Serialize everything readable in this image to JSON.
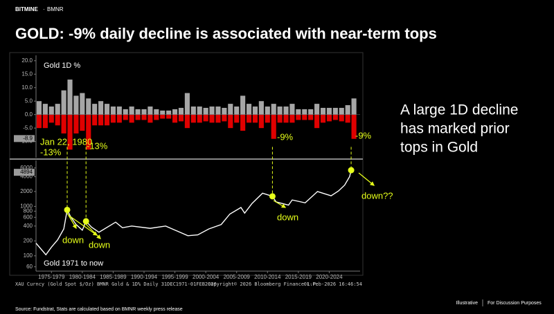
{
  "header": {
    "brand": "BITMINE",
    "ticker": "BMNR"
  },
  "title": "GOLD: -9% daily decline is associated with near-term tops",
  "callout": [
    "A large 1D decline",
    "has marked prior",
    "tops in Gold"
  ],
  "annotations": [
    "Jan 22, 1980",
    "-13%",
    "-13%",
    "-9%",
    "-9%",
    "down",
    "down",
    "down",
    "down??"
  ],
  "footer": {
    "chart_info": "XAU Curncy (Gold Spot $/Oz) BMNR Gold & 1D% Daily 31DEC1971-01FEB2026",
    "copyright": "Copyright© 2026 Bloomberg Finance L.P.",
    "timestamp": "01-Feb-2026 16:46:54",
    "source": "Source: Fundstrat, Stats are calculated based on BMNR weekly press release",
    "note_left": "Illustrative",
    "note_right": "For Discussion Purposes"
  },
  "chart_data": [
    {
      "type": "bar",
      "title": "Gold 1D %",
      "x": [
        1975,
        1976,
        1977,
        1978,
        1979,
        1980,
        1981,
        1982,
        1983,
        1984,
        1985,
        1986,
        1987,
        1988,
        1989,
        1990,
        1991,
        1992,
        1993,
        1994,
        1995,
        1996,
        1997,
        1998,
        1999,
        2000,
        2001,
        2002,
        2003,
        2004,
        2005,
        2006,
        2007,
        2008,
        2009,
        2010,
        2011,
        2012,
        2013,
        2014,
        2015,
        2016,
        2017,
        2018,
        2019,
        2020,
        2021,
        2022,
        2023,
        2024,
        2025,
        2026
      ],
      "series": [
        {
          "color": "#a6a6a6",
          "values": [
            5,
            4,
            3,
            4,
            9,
            13,
            7,
            8,
            6,
            4,
            5,
            4,
            3,
            3,
            2,
            3,
            2,
            2,
            3,
            2,
            1.5,
            1.5,
            2,
            2.5,
            8,
            3,
            3,
            2.5,
            3,
            3,
            2.5,
            4,
            3,
            7,
            4,
            3,
            5,
            3,
            4,
            3,
            3,
            4,
            2,
            2,
            2,
            4,
            2.5,
            2.5,
            2.5,
            2.5,
            3.5,
            6
          ]
        },
        {
          "color": "#e00000",
          "values": [
            -5,
            -5,
            -3,
            -4,
            -7,
            -13,
            -7,
            -6,
            -13,
            -4,
            -4,
            -4,
            -3,
            -3,
            -2,
            -3,
            -2,
            -2,
            -3,
            -2,
            -1.5,
            -1.5,
            -3,
            -2.5,
            -5,
            -3,
            -3,
            -2.5,
            -3,
            -3,
            -2.5,
            -5,
            -3,
            -6,
            -3,
            -3,
            -5,
            -3,
            -9,
            -3,
            -3,
            -3,
            -2,
            -2,
            -2,
            -5,
            -3,
            -2.5,
            -2,
            -2.5,
            -3,
            -9
          ]
        }
      ],
      "xlim": [
        1975,
        2027.5
      ],
      "ylim": [
        -16,
        22
      ],
      "yticks": [
        {
          "value": 20,
          "label": "20.0"
        },
        {
          "value": 15,
          "label": "15.0"
        },
        {
          "value": 10,
          "label": "10.0"
        },
        {
          "value": 5,
          "label": "5.0"
        },
        {
          "value": 0,
          "label": "0.0"
        },
        {
          "value": -5,
          "label": "-5.0"
        },
        {
          "value": -10,
          "label": "-10.0"
        }
      ],
      "last_value": -8.9
    },
    {
      "type": "line",
      "title": "Gold 1971 to now",
      "color": "#ffffff",
      "log_scale": true,
      "x": [
        1975.0,
        1976.6,
        1977.5,
        1978.5,
        1979.5,
        1980.05,
        1980.6,
        1981.5,
        1982.5,
        1983.1,
        1984.0,
        1985.2,
        1987.9,
        1989.0,
        1990.5,
        1993.5,
        1996.0,
        1999.6,
        2001.2,
        2003.0,
        2005.0,
        2006.4,
        2008.2,
        2008.8,
        2010.0,
        2011.7,
        2013.3,
        2013.9,
        2015.9,
        2016.5,
        2018.6,
        2020.6,
        2022.8,
        2024.0,
        2025.0,
        2025.8,
        2026.05,
        2026.1
      ],
      "values": [
        180,
        105,
        150,
        210,
        350,
        850,
        620,
        430,
        330,
        500,
        380,
        300,
        480,
        370,
        400,
        360,
        400,
        255,
        265,
        350,
        430,
        700,
        950,
        730,
        1150,
        1850,
        1600,
        1230,
        1060,
        1350,
        1180,
        2000,
        1640,
        2050,
        2700,
        4000,
        5400,
        4894
      ],
      "xlim": [
        1975,
        2027.5
      ],
      "ylim": [
        49,
        8500
      ],
      "yticks": [
        6000,
        4000,
        2000,
        1000,
        800,
        600,
        400,
        200,
        100,
        60
      ],
      "xticks": [
        {
          "value": 1977.5,
          "label": "1975-1979"
        },
        {
          "value": 1982.5,
          "label": "1980-1984"
        },
        {
          "value": 1987.5,
          "label": "1985-1989"
        },
        {
          "value": 1992.5,
          "label": "1990-1994"
        },
        {
          "value": 1997.5,
          "label": "1995-1999"
        },
        {
          "value": 2002.5,
          "label": "2000-2004"
        },
        {
          "value": 2007.5,
          "label": "2005-2009"
        },
        {
          "value": 2012.5,
          "label": "2010-2014"
        },
        {
          "value": 2017.5,
          "label": "2015-2019"
        },
        {
          "value": 2022.5,
          "label": "2020-2024"
        }
      ],
      "last_value": 4894,
      "highlights": [
        {
          "x": 1980.05,
          "y": 850
        },
        {
          "x": 1983.1,
          "y": 500
        },
        {
          "x": 2013.3,
          "y": 1600
        },
        {
          "x": 2026.05,
          "y": 5400
        }
      ],
      "highlight_color": "#e6ff1a"
    }
  ]
}
